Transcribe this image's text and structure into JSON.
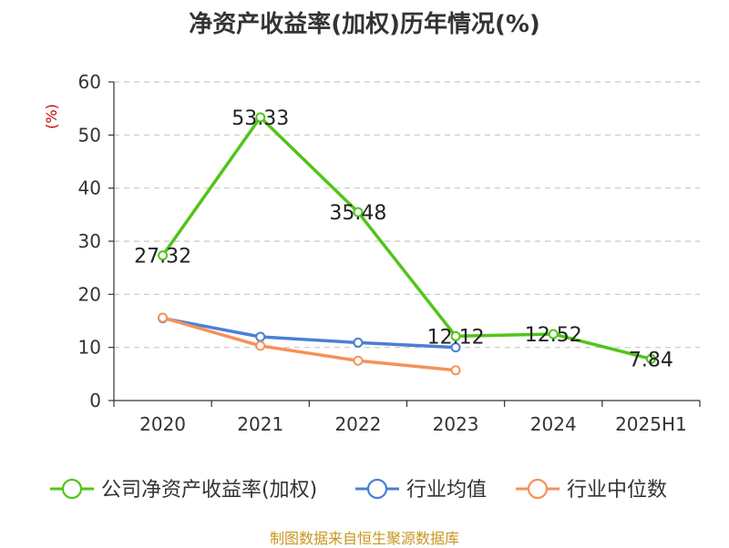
{
  "title": "净资产收益率(加权)历年情况(%)",
  "source": "制图数据来自恒生聚源数据库",
  "chart_data": {
    "type": "line",
    "title": "净资产收益率(加权)历年情况(%)",
    "ylabel": "(%)",
    "ylim": [
      0,
      60
    ],
    "yticks": [
      0,
      10,
      20,
      30,
      40,
      50,
      60
    ],
    "grid": true,
    "legend_position": "bottom",
    "categories": [
      "2020",
      "2021",
      "2022",
      "2023",
      "2024",
      "2025H1"
    ],
    "series": [
      {
        "name": "公司净资产收益率(加权)",
        "color": "#52c41a",
        "values": [
          27.32,
          53.33,
          35.48,
          12.12,
          12.52,
          7.84
        ],
        "labels": [
          "27.32",
          "53.33",
          "35.48",
          "12.12",
          "12.52",
          "7.84"
        ]
      },
      {
        "name": "行业均值",
        "color": "#4a7fd6",
        "values": [
          15.5,
          12.0,
          10.9,
          10.0,
          null,
          null
        ]
      },
      {
        "name": "行业中位数",
        "color": "#f5915a",
        "values": [
          15.6,
          10.3,
          7.5,
          5.7,
          null,
          null
        ]
      }
    ]
  }
}
